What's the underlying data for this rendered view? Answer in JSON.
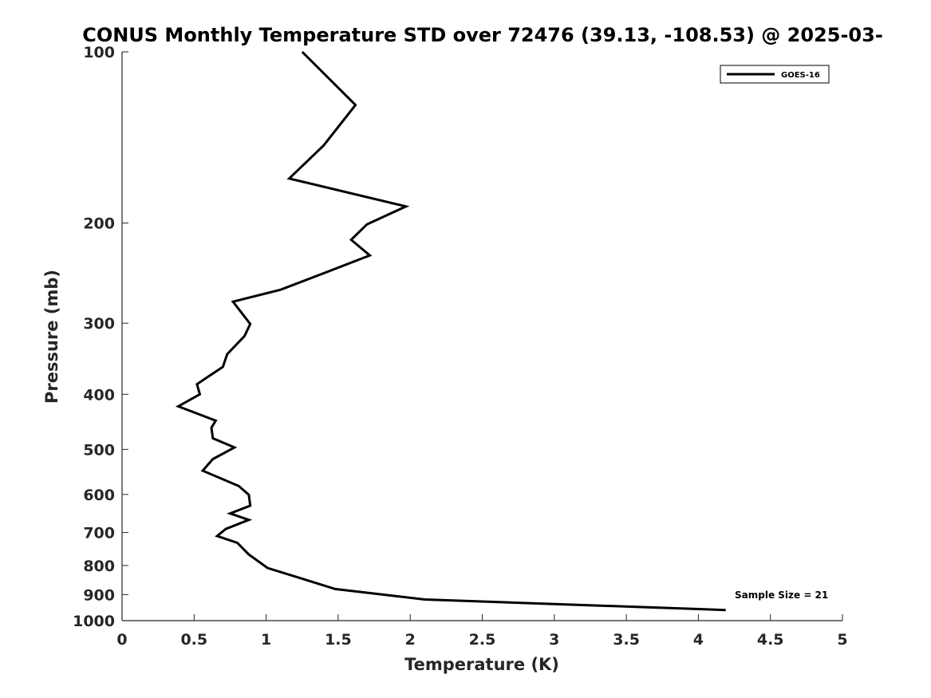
{
  "chart_data": {
    "type": "line",
    "title": "CONUS Monthly Temperature STD over 72476 (39.13, -108.53) @ 2025-03-",
    "xlabel": "Temperature (K)",
    "ylabel": "Pressure (mb)",
    "xlim": [
      0,
      5
    ],
    "ylim": [
      100,
      1000
    ],
    "y_scale": "log",
    "y_reversed": true,
    "x_ticks": [
      0,
      0.5,
      1,
      1.5,
      2,
      2.5,
      3,
      3.5,
      4,
      4.5,
      5
    ],
    "x_tick_labels": [
      "0",
      "0.5",
      "1",
      "1.5",
      "2",
      "2.5",
      "3",
      "3.5",
      "4",
      "4.5",
      "5"
    ],
    "y_ticks": [
      100,
      200,
      300,
      400,
      500,
      600,
      700,
      800,
      900,
      1000
    ],
    "y_tick_labels": [
      "100",
      "200",
      "300",
      "400",
      "500",
      "600",
      "700",
      "800",
      "900",
      "1000"
    ],
    "grid": false,
    "legend_position": "top-right",
    "annotation": "Sample Size = 21",
    "series": [
      {
        "name": "GOES-16",
        "color": "#000000",
        "points": [
          [
            1.25,
            100
          ],
          [
            1.62,
            124
          ],
          [
            1.4,
            146
          ],
          [
            1.16,
            167
          ],
          [
            1.97,
            187
          ],
          [
            1.7,
            201
          ],
          [
            1.59,
            214
          ],
          [
            1.72,
            228
          ],
          [
            1.4,
            245
          ],
          [
            1.1,
            262
          ],
          [
            0.77,
            275
          ],
          [
            0.89,
            301
          ],
          [
            0.85,
            316
          ],
          [
            0.73,
            340
          ],
          [
            0.7,
            358
          ],
          [
            0.52,
            384
          ],
          [
            0.54,
            400
          ],
          [
            0.39,
            420
          ],
          [
            0.65,
            445
          ],
          [
            0.62,
            458
          ],
          [
            0.63,
            478
          ],
          [
            0.78,
            496
          ],
          [
            0.63,
            520
          ],
          [
            0.56,
            545
          ],
          [
            0.81,
            580
          ],
          [
            0.88,
            601
          ],
          [
            0.89,
            628
          ],
          [
            0.75,
            648
          ],
          [
            0.88,
            665
          ],
          [
            0.72,
            690
          ],
          [
            0.66,
            710
          ],
          [
            0.8,
            730
          ],
          [
            0.88,
            765
          ],
          [
            1.01,
            808
          ],
          [
            1.48,
            880
          ],
          [
            2.1,
            918
          ],
          [
            4.19,
            958
          ]
        ]
      }
    ]
  }
}
